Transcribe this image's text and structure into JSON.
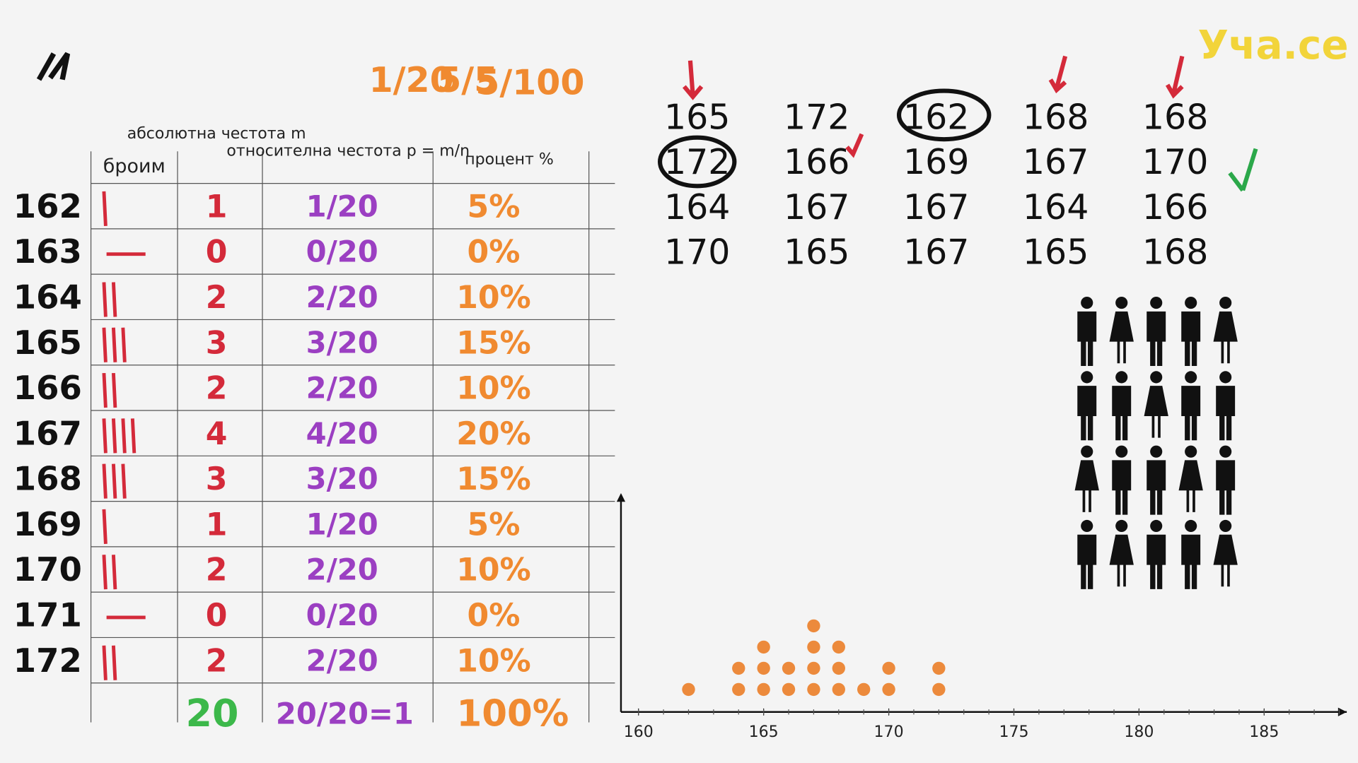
{
  "logo": "Уча.се",
  "formula": {
    "left": "1/20",
    "middle": "5/5",
    "right": "5/100"
  },
  "table": {
    "headers": [
      "броим",
      "абсолютна честота m",
      "относителна честота p = m/n",
      "процент %"
    ],
    "rows": [
      {
        "label": "162",
        "abs": 1,
        "rel": "1/20",
        "pct": "5%"
      },
      {
        "label": "163",
        "abs": 0,
        "rel": "0/20",
        "pct": "0%"
      },
      {
        "label": "164",
        "abs": 2,
        "rel": "2/20",
        "pct": "10%"
      },
      {
        "label": "165",
        "abs": 3,
        "rel": "3/20",
        "pct": "15%"
      },
      {
        "label": "166",
        "abs": 2,
        "rel": "2/20",
        "pct": "10%"
      },
      {
        "label": "167",
        "abs": 4,
        "rel": "4/20",
        "pct": "20%"
      },
      {
        "label": "168",
        "abs": 3,
        "rel": "3/20",
        "pct": "15%"
      },
      {
        "label": "169",
        "abs": 1,
        "rel": "1/20",
        "pct": "5%"
      },
      {
        "label": "170",
        "abs": 2,
        "rel": "2/20",
        "pct": "10%"
      },
      {
        "label": "171",
        "abs": 0,
        "rel": "0/20",
        "pct": "0%"
      },
      {
        "label": "172",
        "abs": 2,
        "rel": "2/20",
        "pct": "10%"
      }
    ],
    "totals": {
      "abs": 20,
      "rel": "20/20=1",
      "pct": "100%"
    }
  },
  "heights": [
    [
      165,
      172,
      162,
      168,
      168
    ],
    [
      172,
      166,
      169,
      167,
      170
    ],
    [
      164,
      167,
      167,
      164,
      166
    ],
    [
      170,
      165,
      167,
      165,
      168
    ]
  ],
  "chart_data": {
    "type": "dot",
    "x": [
      162,
      164,
      165,
      166,
      167,
      168,
      169,
      170,
      172
    ],
    "values": [
      1,
      2,
      3,
      2,
      4,
      3,
      1,
      2,
      2
    ],
    "color": "#ec8a3c",
    "xlim": [
      159.3,
      188.3
    ],
    "xticks": [
      160,
      165,
      170,
      175,
      180,
      185
    ]
  }
}
